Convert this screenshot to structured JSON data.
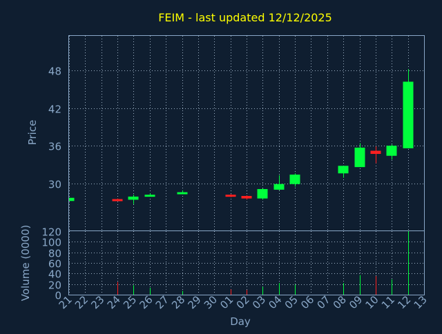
{
  "chart_data": {
    "type": "candlestick",
    "title": "FEIM - last updated 12/12/2025",
    "ylabel_price": "Price",
    "ylabel_volume": "Volume (0000)",
    "xlabel": "Day",
    "price_ylim": [
      22.5,
      53.5
    ],
    "price_yticks": [
      30,
      36,
      42,
      48
    ],
    "volume_ylim": [
      0,
      120
    ],
    "volume_yticks": [
      0,
      20,
      40,
      60,
      80,
      100,
      120
    ],
    "x_ticks": [
      "21",
      "22",
      "23",
      "24",
      "25",
      "26",
      "27",
      "28",
      "29",
      "30",
      "01",
      "02",
      "03",
      "04",
      "05",
      "06",
      "07",
      "08",
      "09",
      "10",
      "11",
      "12",
      "13"
    ],
    "candles": [
      {
        "day": "21",
        "open": 27.2,
        "close": 27.7,
        "high": 27.7,
        "low": 27.2,
        "volume": 0
      },
      {
        "day": "24",
        "open": 27.5,
        "close": 27.4,
        "high": 27.6,
        "low": 27.2,
        "volume": 24
      },
      {
        "day": "25",
        "open": 27.4,
        "close": 27.9,
        "high": 28.2,
        "low": 26.7,
        "volume": 18
      },
      {
        "day": "26",
        "open": 27.9,
        "close": 28.2,
        "high": 28.4,
        "low": 27.9,
        "volume": 13
      },
      {
        "day": "28",
        "open": 28.5,
        "close": 28.6,
        "high": 28.9,
        "low": 28.3,
        "volume": 7
      },
      {
        "day": "01",
        "open": 28.2,
        "close": 27.9,
        "high": 28.3,
        "low": 27.8,
        "volume": 10
      },
      {
        "day": "02",
        "open": 28.0,
        "close": 27.6,
        "high": 28.1,
        "low": 27.4,
        "volume": 9
      },
      {
        "day": "03",
        "open": 27.6,
        "close": 29.1,
        "high": 29.2,
        "low": 27.4,
        "volume": 15
      },
      {
        "day": "04",
        "open": 29.0,
        "close": 29.9,
        "high": 31.3,
        "low": 28.9,
        "volume": 22
      },
      {
        "day": "05",
        "open": 29.9,
        "close": 31.4,
        "high": 31.6,
        "low": 29.5,
        "volume": 19
      },
      {
        "day": "08",
        "open": 31.6,
        "close": 32.8,
        "high": 32.8,
        "low": 30.9,
        "volume": 22
      },
      {
        "day": "09",
        "open": 32.6,
        "close": 35.7,
        "high": 36.4,
        "low": 32.6,
        "volume": 37
      },
      {
        "day": "10",
        "open": 35.2,
        "close": 34.7,
        "high": 35.9,
        "low": 33.2,
        "volume": 35
      },
      {
        "day": "11",
        "open": 34.4,
        "close": 36.0,
        "high": 36.2,
        "low": 33.8,
        "volume": 29
      },
      {
        "day": "12",
        "open": 35.6,
        "close": 46.2,
        "high": 48.2,
        "low": 35.6,
        "volume": 120
      }
    ],
    "colors": {
      "background": "#0f1e30",
      "up": "#00ff3c",
      "down": "#ff2020",
      "axis_text": "#8aa8c8",
      "title_text": "#ffff00",
      "frame": "#8aa8c8",
      "grid": "#a0b4c8"
    }
  }
}
